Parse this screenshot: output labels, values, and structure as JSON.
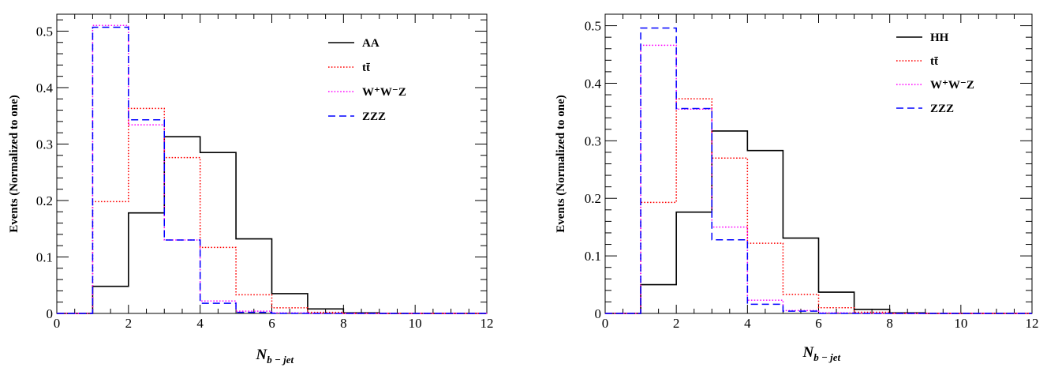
{
  "chart_data": [
    {
      "type": "histogram",
      "xlabel": "N",
      "xlabel_sub": "b − jet",
      "ylabel": "Events (Normalized to one)",
      "xlim": [
        0,
        12
      ],
      "ylim": [
        0,
        0.53
      ],
      "x_ticks": [
        0,
        2,
        4,
        6,
        8,
        10,
        12
      ],
      "y_ticks": [
        0,
        0.1,
        0.2,
        0.3,
        0.4,
        0.5
      ],
      "y_tick_labels": [
        "0",
        "0.1",
        "0.2",
        "0.3",
        "0.4",
        "0.5"
      ],
      "bin_edges": [
        1,
        2,
        3,
        4,
        5,
        6,
        7,
        8,
        9,
        10,
        11,
        12
      ],
      "legend_position": "top-right",
      "series": [
        {
          "name": "AA",
          "color": "#000000",
          "style": "solid",
          "values": [
            0.048,
            0.178,
            0.313,
            0.285,
            0.132,
            0.035,
            0.008,
            0.001,
            0.0,
            0.0,
            0.0
          ]
        },
        {
          "name_main": "tt",
          "name_bar": "t̄",
          "name": "tt̄",
          "color": "#ff0000",
          "style": "dotted",
          "values": [
            0.198,
            0.363,
            0.276,
            0.117,
            0.033,
            0.01,
            0.002,
            0.0,
            0.0,
            0.0,
            0.0
          ]
        },
        {
          "name": "W⁺W⁻Z",
          "color": "#ff00ff",
          "style": "dotted",
          "values": [
            0.51,
            0.334,
            0.13,
            0.022,
            0.004,
            0.001,
            0.0,
            0.0,
            0.0,
            0.0,
            0.0
          ]
        },
        {
          "name": "ZZZ",
          "color": "#0000ff",
          "style": "dashed",
          "values": [
            0.507,
            0.343,
            0.13,
            0.018,
            0.002,
            0.0,
            0.0,
            0.0,
            0.0,
            0.0,
            0.0
          ]
        }
      ]
    },
    {
      "type": "histogram",
      "xlabel": "N",
      "xlabel_sub": "b − jet",
      "ylabel": "Events (Normalized to one)",
      "xlim": [
        0,
        12
      ],
      "ylim": [
        0,
        0.52
      ],
      "x_ticks": [
        0,
        2,
        4,
        6,
        8,
        10,
        12
      ],
      "y_ticks": [
        0,
        0.1,
        0.2,
        0.3,
        0.4,
        0.5
      ],
      "y_tick_labels": [
        "0",
        "0.1",
        "0.2",
        "0.3",
        "0.4",
        "0.5"
      ],
      "bin_edges": [
        1,
        2,
        3,
        4,
        5,
        6,
        7,
        8,
        9,
        10,
        11,
        12
      ],
      "legend_position": "top-right",
      "series": [
        {
          "name": "HH",
          "color": "#000000",
          "style": "solid",
          "values": [
            0.05,
            0.176,
            0.317,
            0.283,
            0.131,
            0.037,
            0.007,
            0.001,
            0.0,
            0.0,
            0.0
          ]
        },
        {
          "name": "tt̄",
          "color": "#ff0000",
          "style": "dotted",
          "values": [
            0.193,
            0.373,
            0.27,
            0.122,
            0.033,
            0.01,
            0.002,
            0.0,
            0.0,
            0.0,
            0.0
          ]
        },
        {
          "name": "W⁺W⁻Z",
          "color": "#ff00ff",
          "style": "dotted",
          "values": [
            0.466,
            0.355,
            0.15,
            0.023,
            0.005,
            0.001,
            0.0,
            0.0,
            0.0,
            0.0,
            0.0
          ]
        },
        {
          "name": "ZZZ",
          "color": "#0000ff",
          "style": "dashed",
          "values": [
            0.496,
            0.356,
            0.128,
            0.016,
            0.004,
            0.0,
            0.0,
            0.0,
            0.0,
            0.0,
            0.0
          ]
        }
      ]
    }
  ]
}
